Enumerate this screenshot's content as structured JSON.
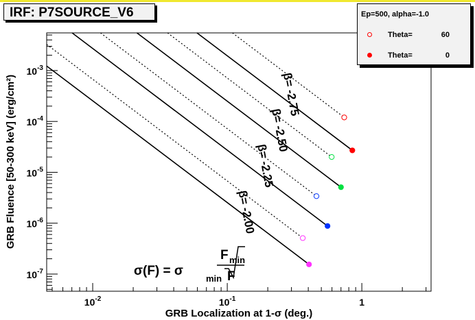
{
  "title": "IRF: P7SOURCE_V6",
  "legend": {
    "header": "Ep=500, alpha=-1.0",
    "entries": [
      {
        "label": "Theta=",
        "value": "60",
        "marker": "open",
        "color": "#ff0000"
      },
      {
        "label": "Theta=",
        "value": "0",
        "marker": "filled",
        "color": "#ff0000"
      }
    ]
  },
  "formula": {
    "lhs": "σ(F) = σ",
    "sub": "min",
    "num": "F",
    "num_sub": "min",
    "den": "F"
  },
  "chart_data": {
    "type": "line",
    "title": "IRF: P7SOURCE_V6",
    "xlabel": "GRB Localization at 1-σ (deg.)",
    "ylabel": "GRB Fluence [50-300 keV] (erg/cm²)",
    "xscale": "log",
    "yscale": "log",
    "xlim": [
      0.00455,
      3.27
    ],
    "ylim": [
      4.6e-08,
      0.0055
    ],
    "x_ticks": [
      {
        "value": 0.01,
        "base": "10",
        "exp": "-2"
      },
      {
        "value": 0.1,
        "base": "10",
        "exp": "-1"
      },
      {
        "value": 1,
        "base": "1",
        "exp": ""
      }
    ],
    "y_ticks": [
      {
        "value": 0.001,
        "base": "10",
        "exp": "-3"
      },
      {
        "value": 0.0001,
        "base": "10",
        "exp": "-4"
      },
      {
        "value": 1e-05,
        "base": "10",
        "exp": "-5"
      },
      {
        "value": 1e-06,
        "base": "10",
        "exp": "-6"
      },
      {
        "value": 1e-07,
        "base": "10",
        "exp": "-7"
      }
    ],
    "line_slope_loglog": -2,
    "series": [
      {
        "name": "beta=-2.00 Theta=0",
        "style": "solid",
        "marker": "filled",
        "color": "#ff33ff",
        "end": [
          0.405,
          1.55e-07
        ]
      },
      {
        "name": "beta=-2.00 Theta=60",
        "style": "dotted",
        "marker": "open",
        "color": "#ff33ff",
        "end": [
          0.364,
          5.1e-07
        ]
      },
      {
        "name": "beta=-2.25 Theta=0",
        "style": "solid",
        "marker": "filled",
        "color": "#0033ff",
        "end": [
          0.556,
          8.8e-07
        ]
      },
      {
        "name": "beta=-2.25 Theta=60",
        "style": "dotted",
        "marker": "open",
        "color": "#0033ff",
        "end": [
          0.46,
          3.4e-06
        ]
      },
      {
        "name": "beta=-2.50 Theta=0",
        "style": "solid",
        "marker": "filled",
        "color": "#00e040",
        "end": [
          0.7,
          5.1e-06
        ]
      },
      {
        "name": "beta=-2.50 Theta=60",
        "style": "dotted",
        "marker": "open",
        "color": "#00e040",
        "end": [
          0.597,
          2e-05
        ]
      },
      {
        "name": "beta=-2.75 Theta=0",
        "style": "solid",
        "marker": "filled",
        "color": "#ff0000",
        "end": [
          0.85,
          2.7e-05
        ]
      },
      {
        "name": "beta=-2.75 Theta=60",
        "style": "dotted",
        "marker": "open",
        "color": "#ff0000",
        "end": [
          0.74,
          0.00012
        ]
      }
    ],
    "annotations": [
      {
        "text": "β= -2.00",
        "at": [
          0.13,
          1.6e-06
        ]
      },
      {
        "text": "β= -2.25",
        "at": [
          0.18,
          1.3e-05
        ]
      },
      {
        "text": "β= -2.50",
        "at": [
          0.23,
          6.5e-05
        ]
      },
      {
        "text": "β= -2.75",
        "at": [
          0.28,
          0.00033
        ]
      }
    ]
  }
}
